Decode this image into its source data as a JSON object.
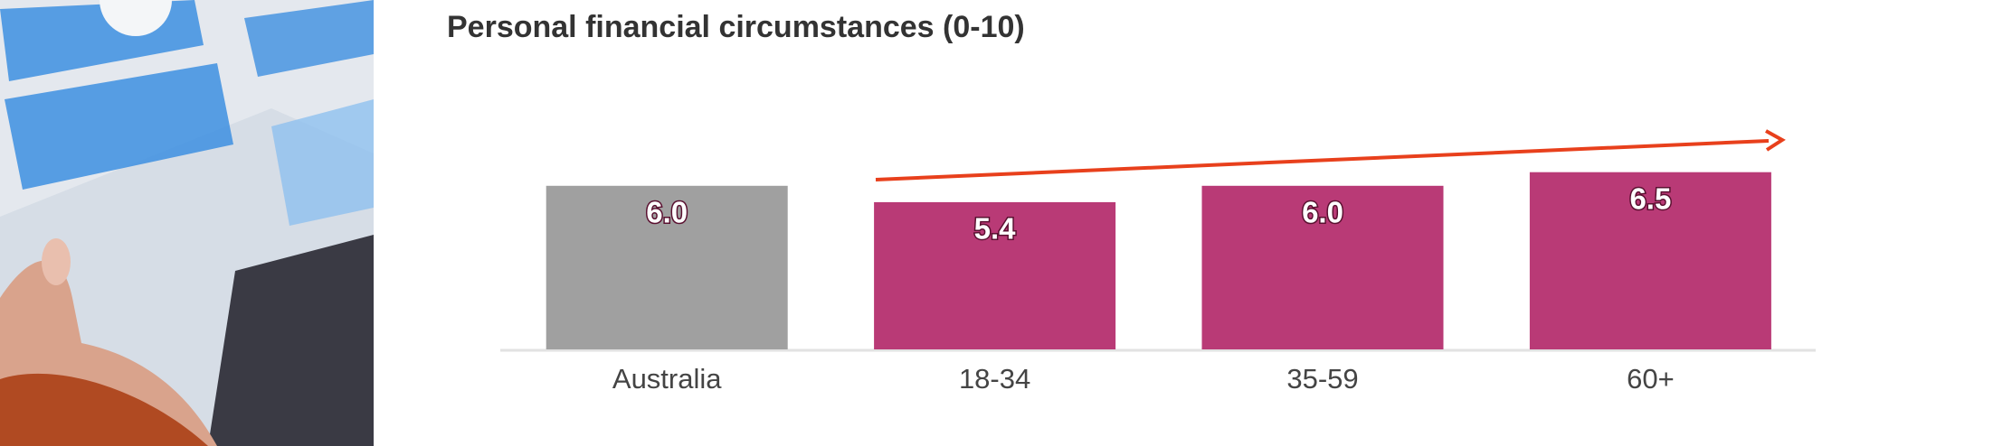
{
  "chart_data": {
    "type": "bar",
    "title": "Personal financial circumstances (0-10)",
    "categories": [
      "Australia",
      "18-34",
      "35-59",
      "60+"
    ],
    "values": [
      6.0,
      5.4,
      6.0,
      6.5
    ],
    "value_labels": [
      "6.0",
      "5.4",
      "6.0",
      "6.5"
    ],
    "colors": [
      "#a0a0a0",
      "#b93a76",
      "#b93a76",
      "#b93a76"
    ],
    "ylim": [
      0,
      10
    ]
  }
}
